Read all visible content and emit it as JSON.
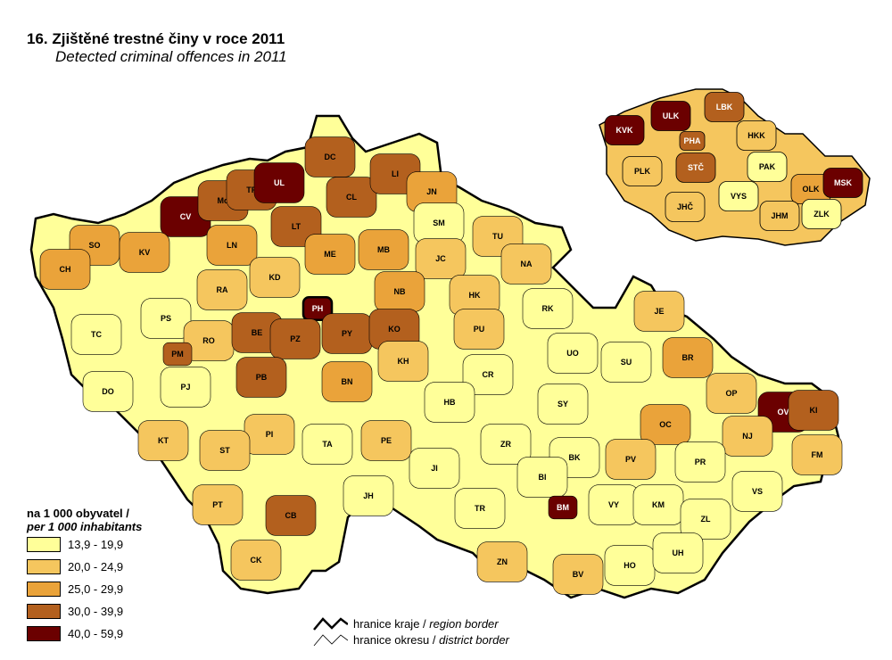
{
  "title": "16. Zjištěné trestné činy v roce 2011",
  "subtitle": "Detected criminal offences in 2011",
  "colors": {
    "c1": "#ffff99",
    "c2": "#f5c65e",
    "c3": "#eaa33a",
    "c4": "#b3601e",
    "c5": "#6b0000"
  },
  "legend": {
    "title": "na 1 000 obyvatel /",
    "subtitle": "per 1 000 inhabitants",
    "classes": [
      {
        "label": "13,9 - 19,9",
        "color": "#ffff99"
      },
      {
        "label": "20,0 - 24,9",
        "color": "#f5c65e"
      },
      {
        "label": "25,0 - 29,9",
        "color": "#eaa33a"
      },
      {
        "label": "30,0 - 39,9",
        "color": "#b3601e"
      },
      {
        "label": "40,0 - 59,9",
        "color": "#6b0000"
      }
    ]
  },
  "border_legend": {
    "region": "hranice kraje",
    "region_en": "region border",
    "district": "hranice okresu",
    "district_en": "district border"
  },
  "districts": [
    {
      "code": "CV",
      "cls": 5
    },
    {
      "code": "MO",
      "label": "Mo",
      "cls": 4
    },
    {
      "code": "TP",
      "cls": 4
    },
    {
      "code": "UL",
      "cls": 5
    },
    {
      "code": "DC",
      "cls": 4
    },
    {
      "code": "CL",
      "cls": 4
    },
    {
      "code": "LI",
      "cls": 4
    },
    {
      "code": "JN",
      "cls": 3
    },
    {
      "code": "SO",
      "cls": 3
    },
    {
      "code": "KV",
      "cls": 3
    },
    {
      "code": "CH",
      "cls": 3
    },
    {
      "code": "LN",
      "cls": 3
    },
    {
      "code": "LT",
      "cls": 4
    },
    {
      "code": "SM",
      "cls": 1
    },
    {
      "code": "TU",
      "cls": 2
    },
    {
      "code": "ME",
      "cls": 3
    },
    {
      "code": "MB",
      "cls": 3
    },
    {
      "code": "JC",
      "cls": 2
    },
    {
      "code": "NA",
      "cls": 2
    },
    {
      "code": "RA",
      "cls": 2
    },
    {
      "code": "KD",
      "cls": 2
    },
    {
      "code": "HK",
      "cls": 2
    },
    {
      "code": "NB",
      "cls": 3
    },
    {
      "code": "RK",
      "cls": 1
    },
    {
      "code": "PH",
      "cls": 5
    },
    {
      "code": "TC",
      "cls": 1
    },
    {
      "code": "PS",
      "cls": 1
    },
    {
      "code": "RO",
      "cls": 2
    },
    {
      "code": "BE",
      "cls": 4
    },
    {
      "code": "PZ",
      "cls": 4
    },
    {
      "code": "PY",
      "cls": 4
    },
    {
      "code": "KO",
      "cls": 4
    },
    {
      "code": "PU",
      "cls": 2
    },
    {
      "code": "JE",
      "cls": 2
    },
    {
      "code": "PM",
      "cls": 4
    },
    {
      "code": "PJ",
      "cls": 1
    },
    {
      "code": "DO",
      "cls": 1
    },
    {
      "code": "PB",
      "cls": 4
    },
    {
      "code": "BN",
      "cls": 3
    },
    {
      "code": "KH",
      "cls": 2
    },
    {
      "code": "CR",
      "cls": 1
    },
    {
      "code": "UO",
      "cls": 1
    },
    {
      "code": "SU",
      "cls": 1
    },
    {
      "code": "BR",
      "cls": 3
    },
    {
      "code": "OP",
      "cls": 2
    },
    {
      "code": "HB",
      "cls": 1
    },
    {
      "code": "SY",
      "cls": 1
    },
    {
      "code": "OV",
      "cls": 5
    },
    {
      "code": "KI",
      "cls": 4
    },
    {
      "code": "KT",
      "cls": 2
    },
    {
      "code": "PI",
      "cls": 2
    },
    {
      "code": "ST",
      "cls": 2
    },
    {
      "code": "TA",
      "cls": 1
    },
    {
      "code": "PE",
      "cls": 2
    },
    {
      "code": "ZR",
      "cls": 1
    },
    {
      "code": "BK",
      "cls": 1
    },
    {
      "code": "OC",
      "cls": 3
    },
    {
      "code": "NJ",
      "cls": 2
    },
    {
      "code": "FM",
      "cls": 2
    },
    {
      "code": "JI",
      "cls": 1
    },
    {
      "code": "PV",
      "cls": 2
    },
    {
      "code": "PR",
      "cls": 1
    },
    {
      "code": "BI",
      "cls": 1
    },
    {
      "code": "PT",
      "cls": 2
    },
    {
      "code": "JH",
      "cls": 1
    },
    {
      "code": "CB",
      "cls": 4
    },
    {
      "code": "TR",
      "cls": 1
    },
    {
      "code": "BM",
      "cls": 5
    },
    {
      "code": "VY",
      "cls": 1
    },
    {
      "code": "KM",
      "cls": 1
    },
    {
      "code": "VS",
      "cls": 1
    },
    {
      "code": "ZL",
      "cls": 1
    },
    {
      "code": "CK",
      "cls": 2
    },
    {
      "code": "ZN",
      "cls": 2
    },
    {
      "code": "BV",
      "cls": 2
    },
    {
      "code": "HO",
      "cls": 1
    },
    {
      "code": "UH",
      "cls": 1
    }
  ],
  "regions": [
    {
      "code": "KVK",
      "cls": 5
    },
    {
      "code": "ULK",
      "cls": 5
    },
    {
      "code": "LBK",
      "cls": 4
    },
    {
      "code": "PHA",
      "cls": 4
    },
    {
      "code": "HKK",
      "cls": 2
    },
    {
      "code": "STČ",
      "cls": 4
    },
    {
      "code": "PAK",
      "cls": 1
    },
    {
      "code": "PLK",
      "cls": 2
    },
    {
      "code": "VYS",
      "cls": 1
    },
    {
      "code": "OLK",
      "cls": 3
    },
    {
      "code": "MSK",
      "cls": 5
    },
    {
      "code": "JHČ",
      "cls": 2
    },
    {
      "code": "JHM",
      "cls": 2
    },
    {
      "code": "ZLK",
      "cls": 1
    }
  ]
}
